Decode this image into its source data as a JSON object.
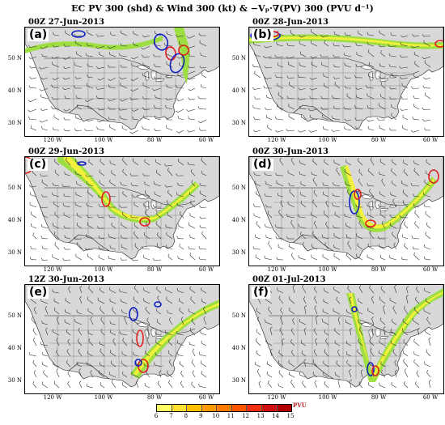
{
  "title": "EC PV 300 (shd) & Wind 300 (kt) & −Vₚ·∇(PV) 300 (PVU d⁻¹)",
  "lat_labels": [
    "50 N",
    "40 N",
    "30 N"
  ],
  "lon_labels": [
    "120 W",
    "100 W",
    "80 W",
    "60 W"
  ],
  "panels": [
    {
      "label": "(a)",
      "time": "00Z 27-Jun-2013"
    },
    {
      "label": "(b)",
      "time": "00Z 28-Jun-2013"
    },
    {
      "label": "(c)",
      "time": "00Z 29-Jun-2013"
    },
    {
      "label": "(d)",
      "time": "00Z 30-Jun-2013"
    },
    {
      "label": "(e)",
      "time": "12Z 30-Jun-2013"
    },
    {
      "label": "(f)",
      "time": "00Z 01-Jul-2013"
    }
  ],
  "colorbar": {
    "ticks": [
      "6",
      "7",
      "8",
      "9",
      "10",
      "11",
      "12",
      "13",
      "14",
      "15"
    ],
    "unit": "PVU",
    "colors": [
      "#ffff66",
      "#ffe033",
      "#ffc000",
      "#ff9900",
      "#ff7a00",
      "#ff5500",
      "#f03010",
      "#d01010",
      "#b00000"
    ]
  },
  "colors": {
    "land": "#d8d8d8",
    "ocean": "#ffffff",
    "pv_low": "#9adf3a",
    "pv_high": "#f6f03a",
    "contour_pos": "#e02020",
    "contour_neg": "#1020c0"
  }
}
